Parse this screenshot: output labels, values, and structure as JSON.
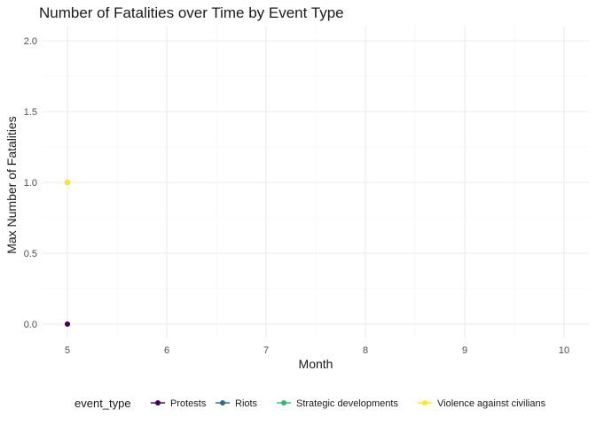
{
  "chart_data": {
    "type": "line",
    "title": "Number of Fatalities over Time by Event Type",
    "xlabel": "Month",
    "ylabel": "Max Number of Fatalities",
    "xlim": [
      5,
      10
    ],
    "ylim": [
      0,
      2
    ],
    "x_ticks": [
      5,
      6,
      7,
      8,
      9,
      10
    ],
    "y_ticks": [
      0.0,
      0.5,
      1.0,
      1.5,
      2.0
    ],
    "y_tick_labels": [
      "0.0",
      "0.5",
      "1.0",
      "1.5",
      "2.0"
    ],
    "grid": true,
    "legend": {
      "title": "event_type",
      "position": "bottom"
    },
    "series": [
      {
        "name": "Protests",
        "color": "#440154",
        "points": [
          {
            "x": 5,
            "y": 0
          }
        ]
      },
      {
        "name": "Riots",
        "color": "#31688E",
        "points": []
      },
      {
        "name": "Strategic developments",
        "color": "#35B779",
        "points": []
      },
      {
        "name": "Violence against civilians",
        "color": "#FDE725",
        "points": [
          {
            "x": 5,
            "y": 1
          }
        ]
      }
    ]
  }
}
